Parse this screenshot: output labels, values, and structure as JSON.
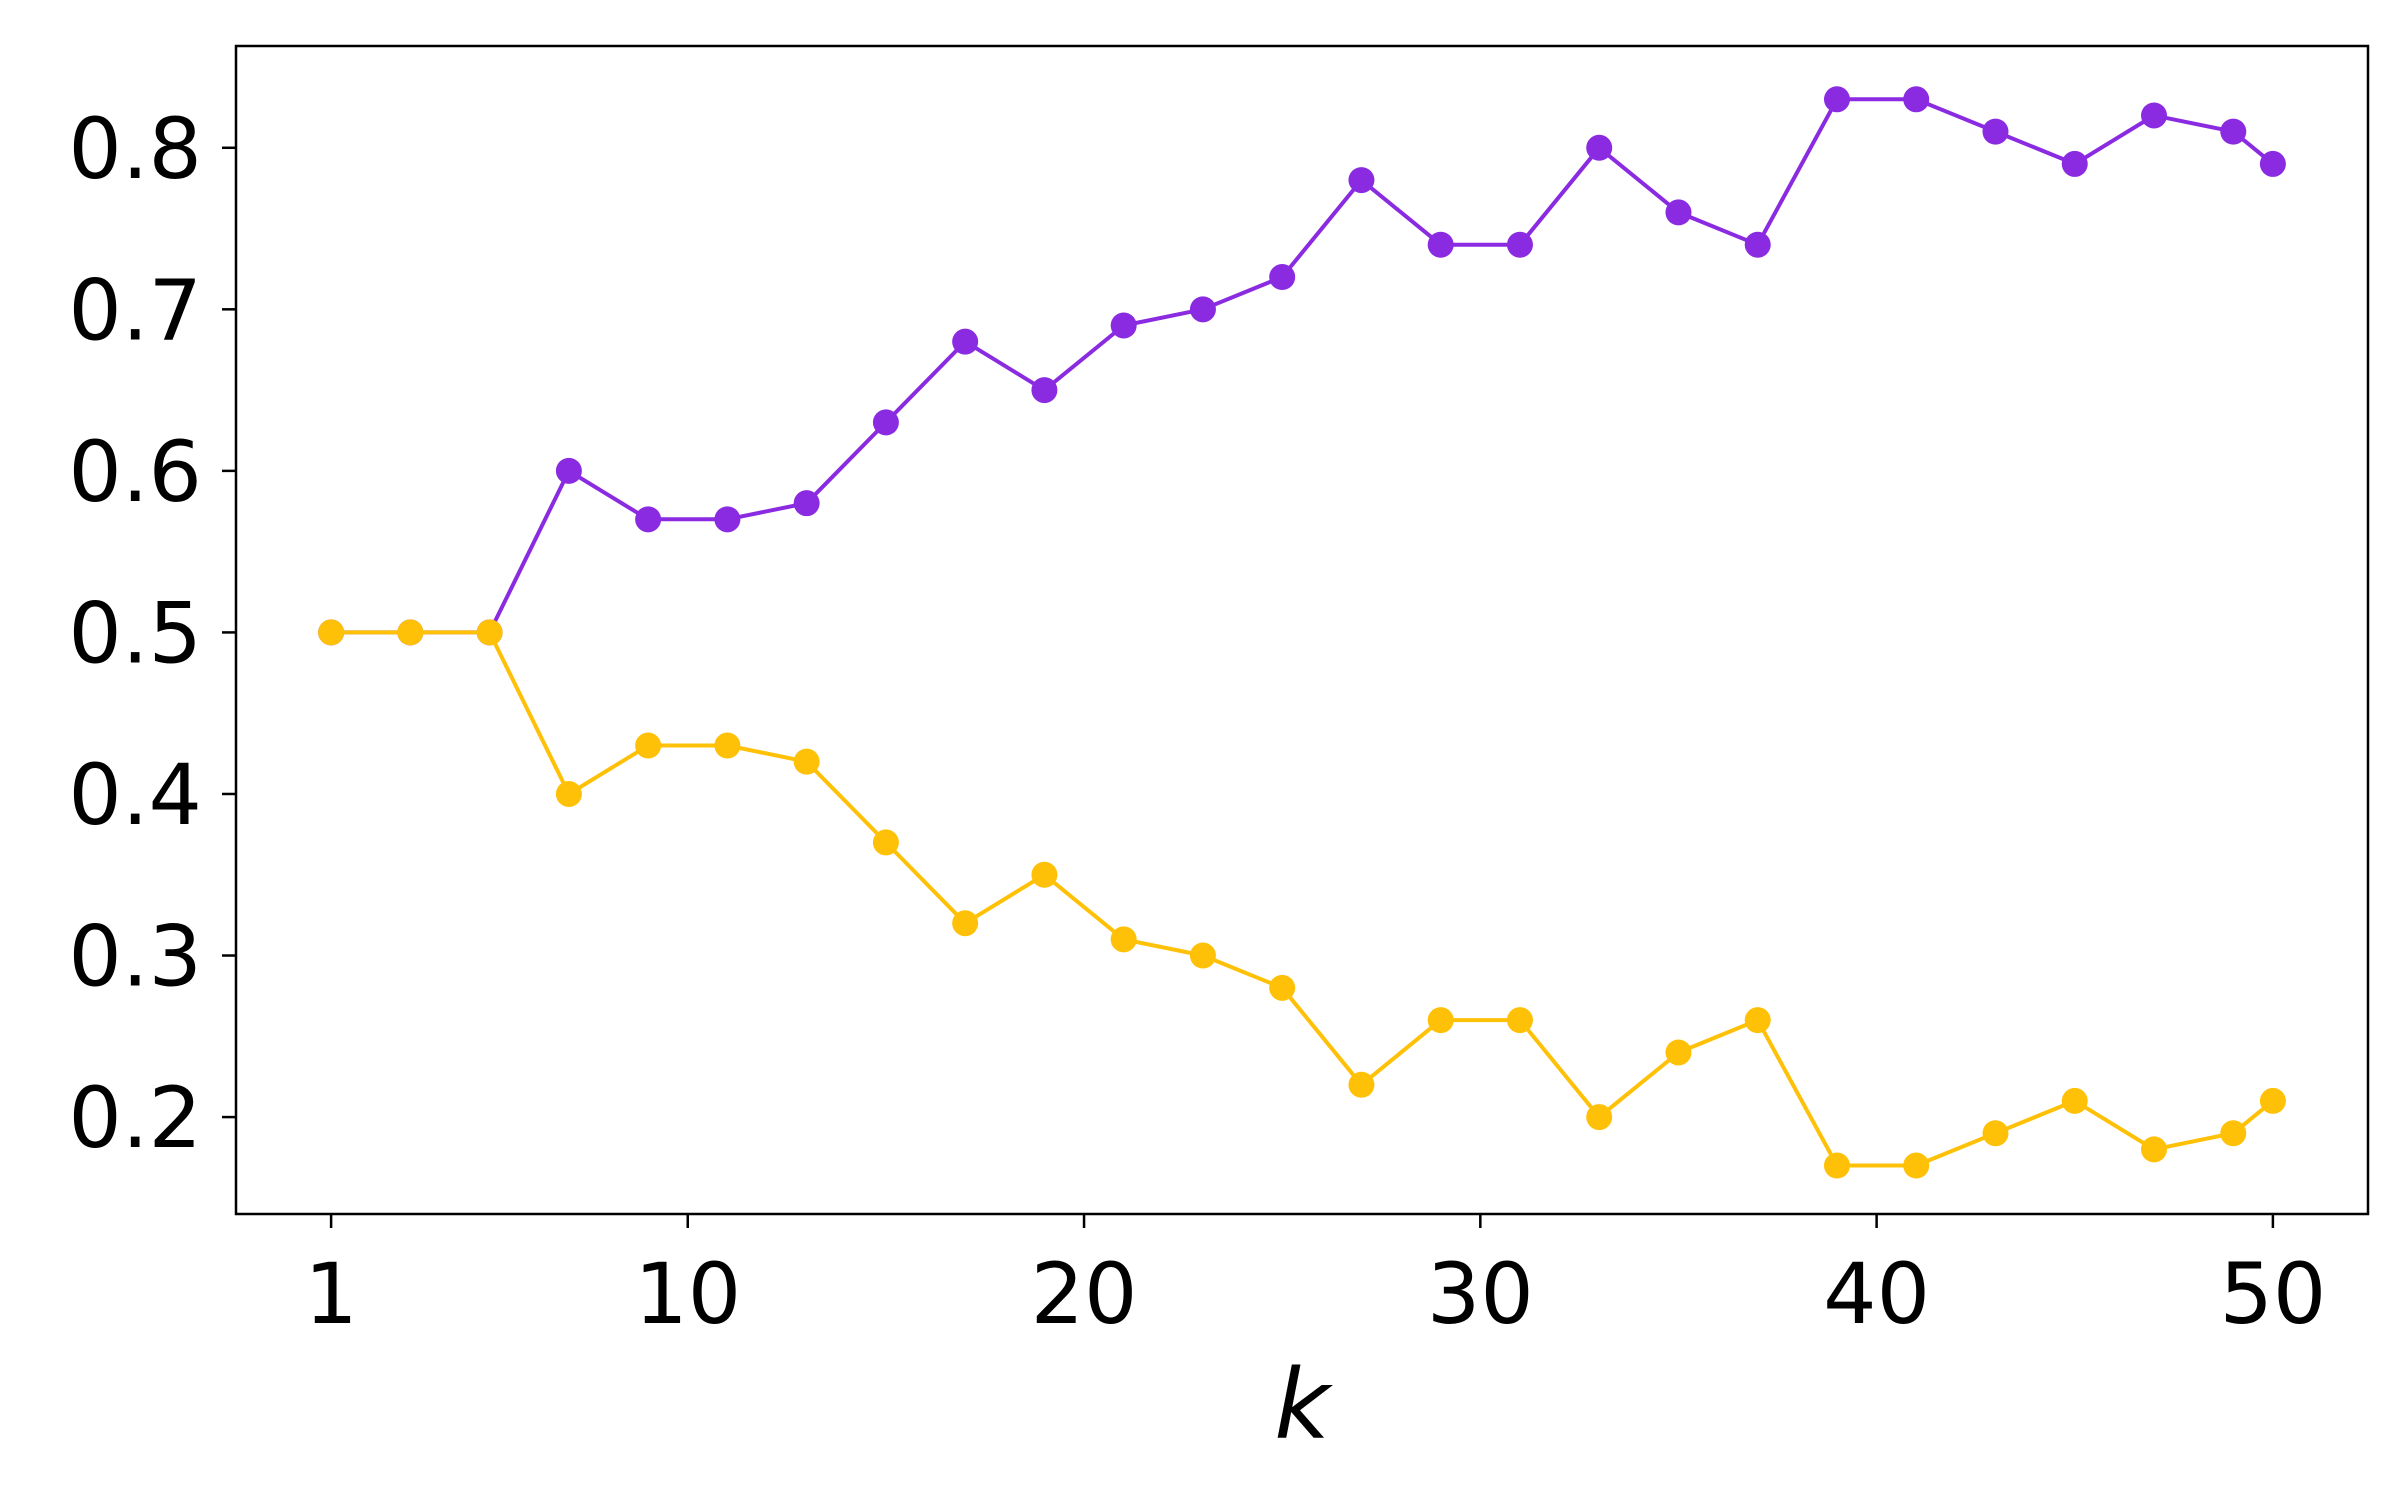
{
  "chart_data": {
    "type": "line",
    "title": "",
    "xlabel": "k",
    "ylabel": "",
    "xlim": [
      -1.4,
      52.4
    ],
    "ylim": [
      0.14,
      0.863
    ],
    "xticks": [
      1,
      10,
      20,
      30,
      40,
      50
    ],
    "yticks": [
      0.2,
      0.3,
      0.4,
      0.5,
      0.6,
      0.7,
      0.8
    ],
    "grid": false,
    "legend": "none",
    "x": [
      1,
      3,
      5,
      7,
      9,
      11,
      13,
      15,
      17,
      19,
      21,
      23,
      25,
      27,
      29,
      31,
      33,
      35,
      37,
      39,
      41,
      43,
      45,
      47,
      49,
      50
    ],
    "series": [
      {
        "color": "#8a2be2",
        "values": [
          0.5,
          0.5,
          0.5,
          0.6,
          0.57,
          0.57,
          0.58,
          0.63,
          0.68,
          0.65,
          0.69,
          0.7,
          0.72,
          0.78,
          0.74,
          0.74,
          0.8,
          0.76,
          0.74,
          0.83,
          0.83,
          0.81,
          0.79,
          0.82,
          0.81,
          0.79
        ]
      },
      {
        "color": "#ffc107",
        "values": [
          0.5,
          0.5,
          0.5,
          0.4,
          0.43,
          0.43,
          0.42,
          0.37,
          0.32,
          0.35,
          0.31,
          0.3,
          0.28,
          0.22,
          0.26,
          0.26,
          0.2,
          0.24,
          0.26,
          0.17,
          0.17,
          0.19,
          0.21,
          0.18,
          0.19,
          0.21
        ]
      }
    ]
  }
}
